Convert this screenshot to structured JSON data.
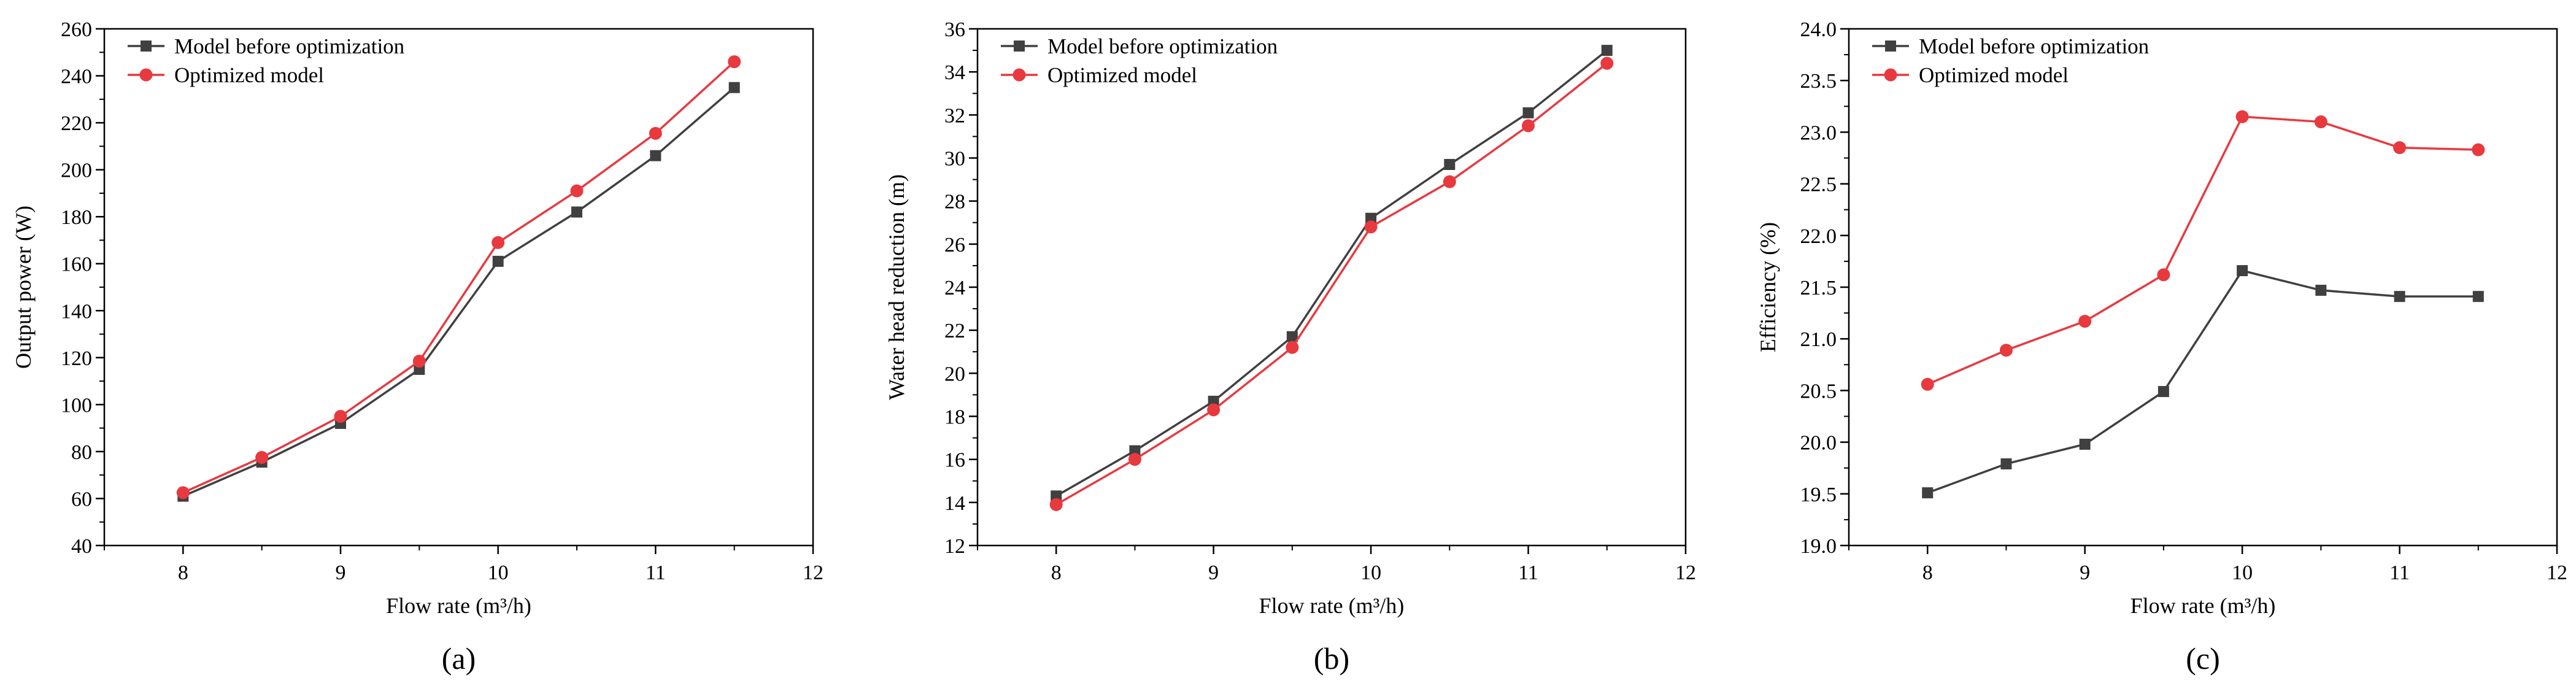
{
  "colors": {
    "series_before": "#404040",
    "series_optimized": "#e8393f",
    "axis": "#000000"
  },
  "chart_data": [
    {
      "type": "line",
      "panel_label": "(a)",
      "xlabel": "Flow rate (m³/h)",
      "ylabel": "Output power (W)",
      "xlim": [
        7.5,
        12
      ],
      "ylim": [
        40,
        260
      ],
      "x_ticks": [
        8,
        9,
        10,
        11,
        12
      ],
      "y_ticks": [
        40,
        60,
        80,
        100,
        120,
        140,
        160,
        180,
        200,
        220,
        240,
        260
      ],
      "legend_position": "top-left",
      "x": [
        8,
        8.5,
        9,
        9.5,
        10,
        10.5,
        11,
        11.5
      ],
      "series": [
        {
          "name": "Model before optimization",
          "marker": "square",
          "values": [
            61,
            75.5,
            92,
            115,
            161,
            182,
            206,
            235
          ]
        },
        {
          "name": "Optimized model",
          "marker": "circle",
          "values": [
            62.5,
            77.5,
            95,
            118.5,
            169,
            191,
            215.5,
            246
          ]
        }
      ]
    },
    {
      "type": "line",
      "panel_label": "(b)",
      "xlabel": "Flow rate (m³/h)",
      "ylabel": "Water head reduction (m)",
      "xlim": [
        7.5,
        12
      ],
      "ylim": [
        12,
        36
      ],
      "x_ticks": [
        8,
        9,
        10,
        11,
        12
      ],
      "y_ticks": [
        12,
        14,
        16,
        18,
        20,
        22,
        24,
        26,
        28,
        30,
        32,
        34,
        36
      ],
      "legend_position": "top-left",
      "x": [
        8,
        8.5,
        9,
        9.5,
        10,
        10.5,
        11,
        11.5
      ],
      "series": [
        {
          "name": "Model before optimization",
          "marker": "square",
          "values": [
            14.3,
            16.4,
            18.7,
            21.7,
            27.2,
            29.7,
            32.1,
            35.0
          ]
        },
        {
          "name": "Optimized model",
          "marker": "circle",
          "values": [
            13.9,
            16.0,
            18.3,
            21.2,
            26.8,
            28.9,
            31.5,
            34.4
          ]
        }
      ]
    },
    {
      "type": "line",
      "panel_label": "(c)",
      "xlabel": "Flow rate (m³/h)",
      "ylabel": "Efficiency (%)",
      "xlim": [
        7.5,
        12
      ],
      "ylim": [
        19.0,
        24.0
      ],
      "x_ticks": [
        8,
        9,
        10,
        11,
        12
      ],
      "y_ticks": [
        "19.0",
        "19.5",
        "20.0",
        "20.5",
        "21.0",
        "21.5",
        "22.0",
        "22.5",
        "23.0",
        "23.5",
        "24.0"
      ],
      "legend_position": "top-left",
      "x": [
        8,
        8.5,
        9,
        9.5,
        10,
        10.5,
        11,
        11.5
      ],
      "series": [
        {
          "name": "Model before optimization",
          "marker": "square",
          "values": [
            19.51,
            19.79,
            19.98,
            20.49,
            21.66,
            21.47,
            21.41,
            21.41
          ]
        },
        {
          "name": "Optimized model",
          "marker": "circle",
          "values": [
            20.56,
            20.89,
            21.17,
            21.62,
            23.15,
            23.1,
            22.85,
            22.83
          ]
        }
      ]
    }
  ]
}
